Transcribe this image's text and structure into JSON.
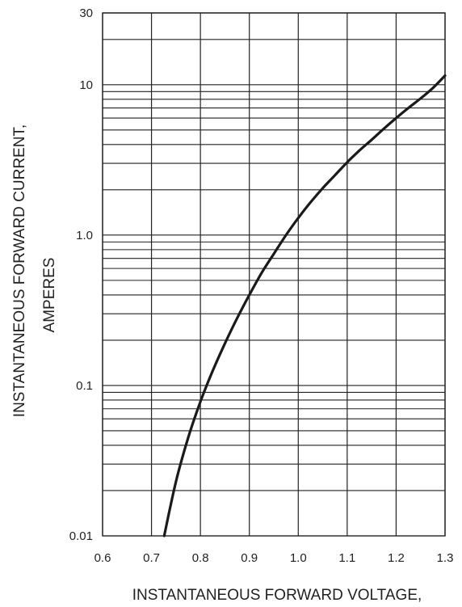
{
  "chart_data": {
    "type": "line",
    "xlabel": "INSTANTANEOUS FORWARD VOLTAGE,",
    "ylabel_line1": "INSTANTANEOUS FORWARD CURRENT,",
    "ylabel_line2": "AMPERES",
    "xlim": [
      0.6,
      1.3
    ],
    "ylim": [
      0.01,
      30
    ],
    "yscale": "log",
    "grid": true,
    "x_ticks": [
      0.6,
      0.7,
      0.8,
      0.9,
      1.0,
      1.1,
      1.2,
      1.3
    ],
    "x_tick_labels": [
      "0.6",
      "0.7",
      "0.8",
      "0.9",
      "1.0",
      "1.1",
      "1.2",
      "1.3"
    ],
    "y_ticks": [
      0.01,
      0.1,
      1.0,
      10,
      30
    ],
    "y_tick_labels": [
      "0.01",
      "0.1",
      "1.0",
      "10",
      "30"
    ],
    "series": [
      {
        "x": [
          0.726,
          0.75,
          0.775,
          0.8,
          0.825,
          0.85,
          0.875,
          0.9,
          0.925,
          0.95,
          0.975,
          1.0,
          1.025,
          1.05,
          1.075,
          1.1,
          1.125,
          1.15,
          1.175,
          1.2,
          1.225,
          1.25,
          1.275,
          1.3
        ],
        "y": [
          0.01,
          0.023,
          0.045,
          0.078,
          0.125,
          0.19,
          0.28,
          0.4,
          0.56,
          0.75,
          1.0,
          1.3,
          1.65,
          2.05,
          2.5,
          3.05,
          3.65,
          4.3,
          5.1,
          6.0,
          7.0,
          8.1,
          9.5,
          11.5
        ]
      }
    ],
    "colors": {
      "line": "#1a1a1a",
      "grid": "#222222"
    }
  }
}
